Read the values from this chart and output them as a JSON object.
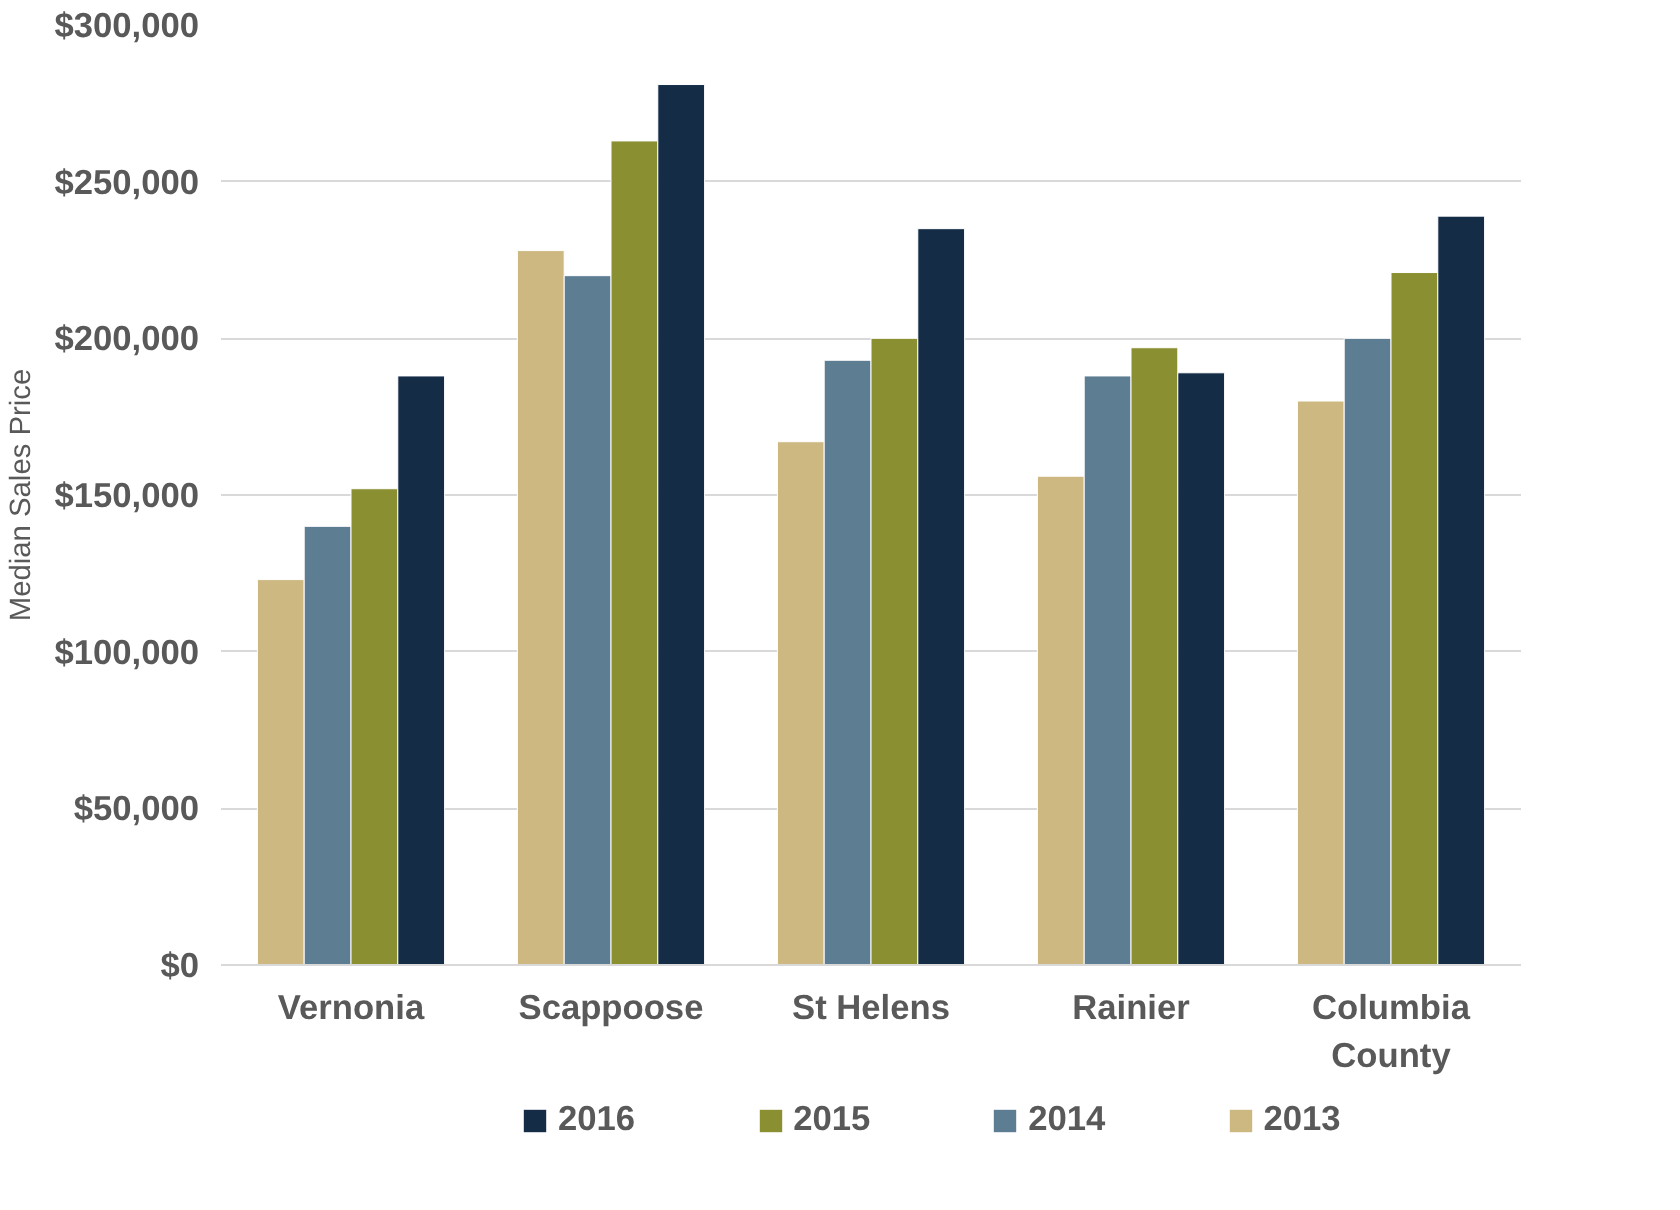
{
  "chart_data": {
    "type": "bar",
    "ylabel": "Median Sales Price",
    "categories": [
      "Vernonia",
      "Scappoose",
      "St Helens",
      "Rainier",
      "Columbia County"
    ],
    "series": [
      {
        "name": "2013",
        "color": "#cdb882",
        "values": [
          123000,
          228000,
          167000,
          156000,
          180000
        ]
      },
      {
        "name": "2014",
        "color": "#5c7d92",
        "values": [
          140000,
          220000,
          193000,
          188000,
          200000
        ]
      },
      {
        "name": "2015",
        "color": "#8a8f32",
        "values": [
          152000,
          263000,
          200000,
          197000,
          221000
        ]
      },
      {
        "name": "2016",
        "color": "#152c47",
        "values": [
          188000,
          281000,
          235000,
          189000,
          239000
        ]
      }
    ],
    "ylim": [
      0,
      300000
    ],
    "yticks": [
      {
        "value": 0,
        "label": "$0"
      },
      {
        "value": 50000,
        "label": "$50,000"
      },
      {
        "value": 100000,
        "label": "$100,000"
      },
      {
        "value": 150000,
        "label": "$150,000"
      },
      {
        "value": 200000,
        "label": "$200,000"
      },
      {
        "value": 250000,
        "label": "$250,000"
      },
      {
        "value": 300000,
        "label": "$300,000"
      }
    ],
    "grid": "y",
    "legend": "bottom"
  }
}
